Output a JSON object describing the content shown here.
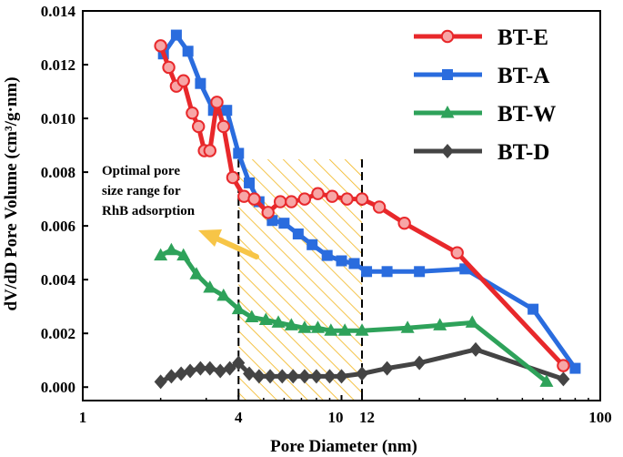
{
  "chart_data": {
    "type": "line",
    "title": "",
    "xlabel": "Pore Diameter (nm)",
    "ylabel": "dV/dD Pore Volume (cm³/g·nm)",
    "xscale": "log",
    "xlim": [
      1,
      100
    ],
    "ylim": [
      -0.0005,
      0.014
    ],
    "xticks": [
      1,
      4,
      10,
      12,
      100
    ],
    "xtick_labels": [
      "1",
      "4",
      "10",
      "12",
      "100"
    ],
    "yticks": [
      0.0,
      0.002,
      0.004,
      0.006,
      0.008,
      0.01,
      0.012,
      0.014
    ],
    "ytick_labels": [
      "0.000",
      "0.002",
      "0.004",
      "0.006",
      "0.008",
      "0.010",
      "0.012",
      "0.014"
    ],
    "legend_position": "top-right",
    "highlight_range": [
      4,
      12
    ],
    "annotation": {
      "lines": [
        "Optimal pore",
        "size range for",
        "RhB adsorption"
      ]
    },
    "series": [
      {
        "name": "BT-E",
        "color": "#e8282b",
        "marker": "circle",
        "x": [
          2.0,
          2.15,
          2.3,
          2.45,
          2.65,
          2.8,
          2.95,
          3.1,
          3.3,
          3.5,
          3.8,
          4.2,
          4.6,
          5.2,
          5.8,
          6.4,
          7.2,
          8.1,
          9.2,
          10.5,
          12.0,
          14.0,
          17.5,
          28.0,
          72.0
        ],
        "y": [
          0.0127,
          0.0119,
          0.0112,
          0.0114,
          0.0102,
          0.0097,
          0.0088,
          0.0088,
          0.0106,
          0.0097,
          0.0078,
          0.0071,
          0.007,
          0.0065,
          0.0069,
          0.0069,
          0.007,
          0.0072,
          0.0071,
          0.007,
          0.007,
          0.0067,
          0.0061,
          0.005,
          0.0008
        ]
      },
      {
        "name": "BT-A",
        "color": "#2a6cde",
        "marker": "square",
        "x": [
          2.05,
          2.3,
          2.55,
          2.85,
          3.2,
          3.6,
          4.0,
          4.4,
          4.8,
          5.4,
          6.0,
          6.8,
          7.7,
          8.8,
          10.0,
          11.2,
          12.5,
          15.0,
          20.0,
          30.0,
          55.0,
          80.0
        ],
        "y": [
          0.0124,
          0.0131,
          0.0125,
          0.0113,
          0.0103,
          0.0103,
          0.0087,
          0.0076,
          0.0069,
          0.0062,
          0.0061,
          0.0057,
          0.0053,
          0.0049,
          0.0047,
          0.0046,
          0.0043,
          0.0043,
          0.0043,
          0.0044,
          0.0029,
          0.0007
        ]
      },
      {
        "name": "BT-W",
        "color": "#2ea25a",
        "marker": "triangle",
        "x": [
          2.0,
          2.2,
          2.45,
          2.75,
          3.1,
          3.5,
          4.0,
          4.5,
          5.1,
          5.7,
          6.4,
          7.2,
          8.1,
          9.1,
          10.3,
          12.0,
          18.0,
          24.0,
          32.0,
          62.0
        ],
        "y": [
          0.0049,
          0.0051,
          0.0049,
          0.0042,
          0.0037,
          0.0034,
          0.0029,
          0.0026,
          0.0025,
          0.0024,
          0.0023,
          0.0022,
          0.0022,
          0.0021,
          0.0021,
          0.0021,
          0.0022,
          0.0023,
          0.0024,
          0.0002
        ]
      },
      {
        "name": "BT-D",
        "color": "#444444",
        "marker": "diamond",
        "x": [
          2.0,
          2.2,
          2.4,
          2.6,
          2.85,
          3.1,
          3.4,
          3.7,
          4.0,
          4.4,
          4.8,
          5.3,
          5.9,
          6.5,
          7.2,
          8.0,
          9.0,
          10.0,
          12.0,
          15.0,
          20.0,
          33.0,
          72.0
        ],
        "y": [
          0.0002,
          0.0004,
          0.0005,
          0.0006,
          0.0007,
          0.0007,
          0.0006,
          0.0007,
          0.0009,
          0.0005,
          0.0004,
          0.0004,
          0.0004,
          0.0004,
          0.0004,
          0.0004,
          0.0004,
          0.0004,
          0.0005,
          0.0007,
          0.0009,
          0.0014,
          0.0003
        ]
      }
    ]
  }
}
